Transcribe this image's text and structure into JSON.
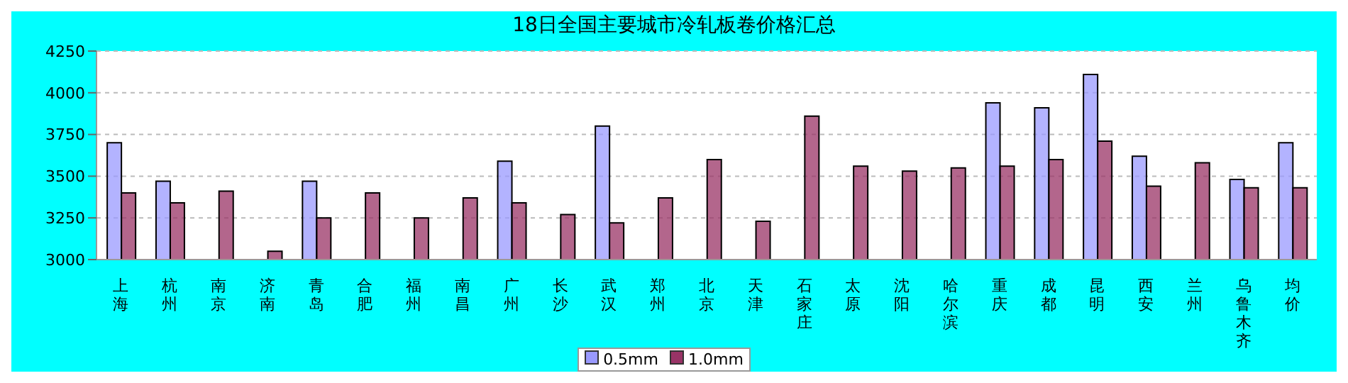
{
  "chart_data": {
    "type": "bar",
    "title": "18日全国主要城市冷轧板卷价格汇总",
    "categories": [
      "上海",
      "杭州",
      "南京",
      "济南",
      "青岛",
      "合肥",
      "福州",
      "南昌",
      "广州",
      "长沙",
      "武汉",
      "郑州",
      "北京",
      "天津",
      "石家庄",
      "太原",
      "沈阳",
      "哈尔滨",
      "重庆",
      "成都",
      "昆明",
      "西安",
      "兰州",
      "乌鲁木齐",
      "均价"
    ],
    "series": [
      {
        "name": "0.5mm",
        "color": "#9999ff",
        "values": [
          3700,
          3470,
          null,
          null,
          3470,
          null,
          null,
          null,
          3590,
          null,
          3800,
          null,
          null,
          null,
          null,
          null,
          null,
          null,
          3940,
          3910,
          4110,
          3620,
          null,
          3480,
          3700
        ]
      },
      {
        "name": "1.0mm",
        "color": "#993366",
        "values": [
          3400,
          3340,
          3410,
          3050,
          3250,
          3400,
          3250,
          3370,
          3340,
          3270,
          3220,
          3370,
          3600,
          3230,
          3860,
          3560,
          3530,
          3550,
          3560,
          3600,
          3710,
          3440,
          3580,
          3430,
          3430
        ]
      }
    ],
    "ylim": [
      3000,
      4250
    ],
    "yticks": [
      3000,
      3250,
      3500,
      3750,
      4000,
      4250
    ],
    "grid": "y",
    "legend": "bottom"
  }
}
